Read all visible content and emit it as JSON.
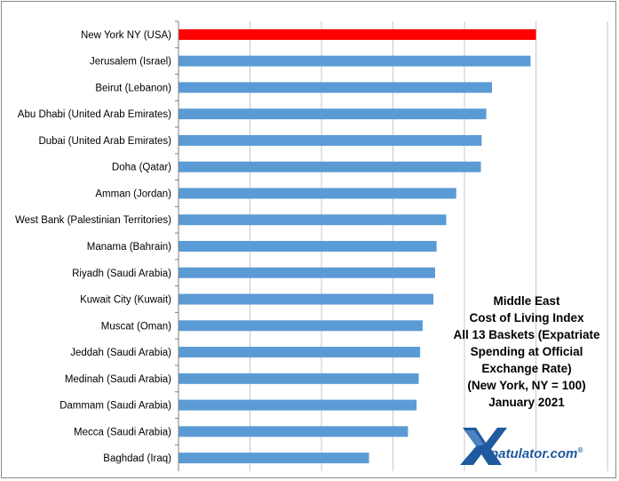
{
  "chart_data": {
    "type": "bar",
    "orientation": "horizontal",
    "categories": [
      "New York NY (USA)",
      "Jerusalem (Israel)",
      "Beirut (Lebanon)",
      "Abu Dhabi (United Arab Emirates)",
      "Dubai (United Arab Emirates)",
      "Doha (Qatar)",
      "Amman (Jordan)",
      "West Bank (Palestinian Territories)",
      "Manama (Bahrain)",
      "Riyadh (Saudi Arabia)",
      "Kuwait City (Kuwait)",
      "Muscat (Oman)",
      "Jeddah (Saudi Arabia)",
      "Medinah (Saudi Arabia)",
      "Dammam (Saudi Arabia)",
      "Mecca (Saudi Arabia)",
      "Baghdad (Iraq)"
    ],
    "values": [
      100,
      98.5,
      87.7,
      86.1,
      84.8,
      84.6,
      77.7,
      74.9,
      72.2,
      71.8,
      71.3,
      68.3,
      67.6,
      67.2,
      66.6,
      64.2,
      53.3
    ],
    "highlight_index": 0,
    "colors": {
      "bar": "#5b9bd5",
      "highlight": "#ff0000",
      "grid": "#c8c8c8",
      "axis": "#808080"
    },
    "xlim": [
      0,
      120
    ],
    "grid": true,
    "title_lines": [
      "Middle East",
      "Cost of Living Index",
      "All 13 Baskets (Expatriate",
      "Spending  at Official",
      "Exchange Rate)",
      "(New York, NY = 100)",
      "January 2021"
    ]
  },
  "logo": {
    "text": "patulator.com",
    "trademark": "®",
    "colors": {
      "blue": "#1f5a9e",
      "light": "#6fa8dc"
    }
  }
}
